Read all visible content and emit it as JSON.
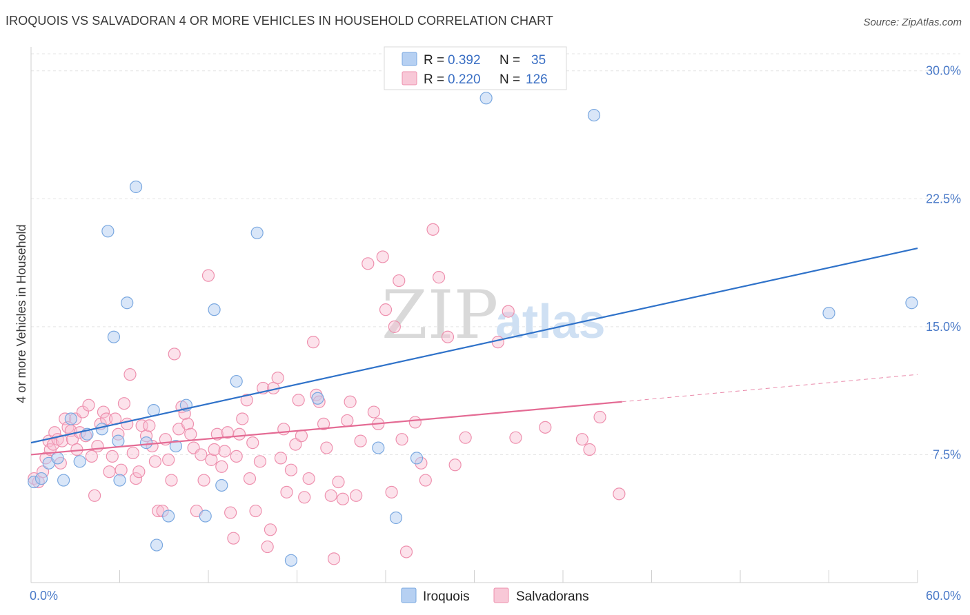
{
  "title": "IROQUOIS VS SALVADORAN 4 OR MORE VEHICLES IN HOUSEHOLD CORRELATION CHART",
  "source": "Source: ZipAtlas.com",
  "watermark": {
    "zip": "ZIP",
    "atlas": "atlas"
  },
  "legend": {
    "r_label": "R =",
    "n_label": "N =",
    "rows": [
      {
        "name": "Iroquois",
        "r": "0.392",
        "n": "35"
      },
      {
        "name": "Salvadorans",
        "r": "0.220",
        "n": "126"
      }
    ]
  },
  "chart_data": {
    "type": "scatter",
    "title": "IROQUOIS VS SALVADORAN 4 OR MORE VEHICLES IN HOUSEHOLD CORRELATION CHART",
    "xlabel": "",
    "ylabel": "4 or more Vehicles in Household",
    "xlim": [
      0,
      60
    ],
    "ylim": [
      0,
      31
    ],
    "x_tick_labels": [
      "0.0%",
      "60.0%"
    ],
    "y_ticks": [
      7.5,
      15.0,
      22.5,
      30.0
    ],
    "y_tick_labels": [
      "7.5%",
      "15.0%",
      "22.5%",
      "30.0%"
    ],
    "grid": true,
    "legend_position": "top-center",
    "colors": {
      "Iroquois": "#7aa8e0",
      "Salvadorans": "#ee90ae",
      "iroquois_line": "#2f72c9",
      "salvadoran_line": "#e46b94"
    },
    "series": [
      {
        "name": "Iroquois",
        "points": [
          [
            0.2,
            5.9
          ],
          [
            0.7,
            6.1
          ],
          [
            1.2,
            7.0
          ],
          [
            1.8,
            7.3
          ],
          [
            2.2,
            6.0
          ],
          [
            2.7,
            9.6
          ],
          [
            3.3,
            7.1
          ],
          [
            3.8,
            8.7
          ],
          [
            4.8,
            9.0
          ],
          [
            5.2,
            20.6
          ],
          [
            5.6,
            14.4
          ],
          [
            5.9,
            8.3
          ],
          [
            6.0,
            6.0
          ],
          [
            6.5,
            16.4
          ],
          [
            7.1,
            23.2
          ],
          [
            7.8,
            8.2
          ],
          [
            8.3,
            10.1
          ],
          [
            8.5,
            2.2
          ],
          [
            9.3,
            3.9
          ],
          [
            9.8,
            8.0
          ],
          [
            10.5,
            10.4
          ],
          [
            11.8,
            3.9
          ],
          [
            12.4,
            16.0
          ],
          [
            12.9,
            5.7
          ],
          [
            13.9,
            11.8
          ],
          [
            15.3,
            20.5
          ],
          [
            17.6,
            1.3
          ],
          [
            19.4,
            10.8
          ],
          [
            23.5,
            7.9
          ],
          [
            24.7,
            3.8
          ],
          [
            26.1,
            7.3
          ],
          [
            30.8,
            28.4
          ],
          [
            38.1,
            27.4
          ],
          [
            54.0,
            15.8
          ],
          [
            59.6,
            16.4
          ]
        ],
        "trend": {
          "x": [
            0,
            60
          ],
          "y": [
            8.2,
            19.6
          ]
        }
      },
      {
        "name": "Salvadorans",
        "points": [
          [
            0.2,
            6.1
          ],
          [
            0.5,
            5.9
          ],
          [
            0.8,
            6.5
          ],
          [
            1.0,
            7.3
          ],
          [
            1.2,
            8.3
          ],
          [
            1.3,
            7.8
          ],
          [
            1.5,
            8.1
          ],
          [
            1.6,
            8.8
          ],
          [
            1.8,
            8.4
          ],
          [
            2.0,
            7.0
          ],
          [
            2.1,
            8.3
          ],
          [
            2.3,
            9.6
          ],
          [
            2.5,
            9.1
          ],
          [
            2.7,
            8.9
          ],
          [
            2.8,
            8.4
          ],
          [
            3.0,
            9.6
          ],
          [
            3.1,
            7.8
          ],
          [
            3.3,
            8.8
          ],
          [
            3.5,
            10.0
          ],
          [
            3.7,
            8.6
          ],
          [
            3.9,
            10.4
          ],
          [
            4.1,
            7.4
          ],
          [
            4.3,
            5.1
          ],
          [
            4.5,
            8.0
          ],
          [
            4.7,
            9.3
          ],
          [
            4.9,
            10.0
          ],
          [
            5.1,
            9.6
          ],
          [
            5.3,
            6.5
          ],
          [
            5.5,
            7.4
          ],
          [
            5.7,
            9.6
          ],
          [
            5.9,
            8.7
          ],
          [
            6.1,
            6.6
          ],
          [
            6.3,
            10.5
          ],
          [
            6.5,
            9.3
          ],
          [
            6.7,
            12.2
          ],
          [
            6.9,
            7.6
          ],
          [
            7.1,
            6.1
          ],
          [
            7.3,
            6.5
          ],
          [
            7.5,
            9.2
          ],
          [
            7.8,
            8.6
          ],
          [
            8.0,
            9.2
          ],
          [
            8.2,
            8.0
          ],
          [
            8.4,
            7.1
          ],
          [
            8.6,
            4.2
          ],
          [
            8.9,
            4.2
          ],
          [
            9.1,
            8.4
          ],
          [
            9.3,
            7.2
          ],
          [
            9.5,
            6.0
          ],
          [
            9.7,
            13.4
          ],
          [
            10.0,
            9.0
          ],
          [
            10.2,
            10.3
          ],
          [
            10.4,
            9.9
          ],
          [
            10.6,
            9.3
          ],
          [
            10.8,
            8.7
          ],
          [
            11.0,
            7.9
          ],
          [
            11.2,
            4.2
          ],
          [
            11.5,
            7.5
          ],
          [
            11.7,
            6.0
          ],
          [
            12.0,
            18.0
          ],
          [
            12.2,
            7.2
          ],
          [
            12.4,
            7.8
          ],
          [
            12.6,
            8.7
          ],
          [
            12.9,
            6.8
          ],
          [
            13.1,
            7.7
          ],
          [
            13.3,
            8.8
          ],
          [
            13.5,
            4.1
          ],
          [
            13.7,
            2.6
          ],
          [
            13.9,
            7.4
          ],
          [
            14.1,
            8.7
          ],
          [
            14.3,
            9.6
          ],
          [
            14.6,
            10.7
          ],
          [
            14.8,
            6.1
          ],
          [
            15.0,
            8.2
          ],
          [
            15.2,
            4.2
          ],
          [
            15.5,
            7.1
          ],
          [
            15.7,
            11.4
          ],
          [
            16.0,
            2.1
          ],
          [
            16.2,
            3.1
          ],
          [
            16.4,
            11.4
          ],
          [
            16.7,
            12.0
          ],
          [
            16.9,
            7.3
          ],
          [
            17.1,
            9.0
          ],
          [
            17.3,
            5.3
          ],
          [
            17.6,
            6.6
          ],
          [
            17.9,
            8.1
          ],
          [
            18.1,
            10.7
          ],
          [
            18.3,
            8.6
          ],
          [
            18.5,
            5.0
          ],
          [
            18.8,
            6.1
          ],
          [
            19.1,
            14.1
          ],
          [
            19.3,
            11.0
          ],
          [
            19.5,
            10.6
          ],
          [
            19.8,
            9.3
          ],
          [
            20.0,
            7.9
          ],
          [
            20.3,
            5.1
          ],
          [
            20.5,
            1.4
          ],
          [
            20.8,
            5.9
          ],
          [
            21.1,
            4.9
          ],
          [
            21.4,
            9.5
          ],
          [
            21.6,
            10.6
          ],
          [
            22.0,
            5.1
          ],
          [
            22.3,
            8.3
          ],
          [
            22.8,
            18.7
          ],
          [
            23.2,
            10.0
          ],
          [
            23.5,
            9.3
          ],
          [
            23.8,
            19.1
          ],
          [
            24.0,
            16.0
          ],
          [
            24.4,
            5.3
          ],
          [
            24.6,
            15.0
          ],
          [
            24.9,
            17.7
          ],
          [
            25.1,
            8.4
          ],
          [
            25.4,
            1.8
          ],
          [
            26.0,
            9.4
          ],
          [
            26.4,
            7.0
          ],
          [
            26.7,
            6.0
          ],
          [
            27.2,
            20.7
          ],
          [
            27.6,
            17.9
          ],
          [
            28.2,
            14.4
          ],
          [
            28.7,
            6.9
          ],
          [
            29.4,
            8.5
          ],
          [
            31.6,
            14.1
          ],
          [
            32.3,
            15.9
          ],
          [
            32.8,
            8.5
          ],
          [
            34.8,
            9.1
          ],
          [
            37.3,
            8.4
          ],
          [
            37.8,
            7.8
          ],
          [
            38.5,
            9.7
          ],
          [
            39.8,
            5.2
          ]
        ],
        "trend": {
          "x": [
            0,
            40
          ],
          "y": [
            7.5,
            10.6
          ]
        },
        "trend_dashed": {
          "x": [
            40,
            60
          ],
          "y": [
            10.6,
            12.2
          ]
        }
      }
    ]
  }
}
